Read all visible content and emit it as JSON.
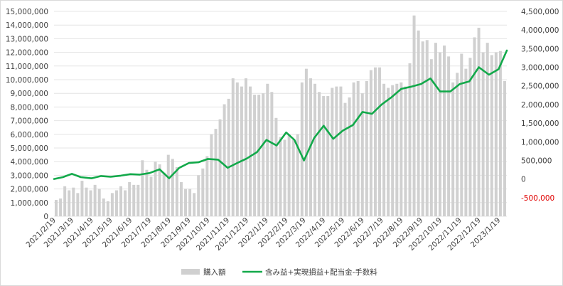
{
  "chart_data": {
    "type": "bar+line",
    "title": "",
    "colors": {
      "bar": "#d0d0d0",
      "line": "#12a94a",
      "negative_tick": "#e00000",
      "grid": "#e4e4e4"
    },
    "grid": true,
    "legend_position": "bottom",
    "left_axis": {
      "ylim": [
        0,
        15000000
      ],
      "ticks": [
        0,
        1000000,
        2000000,
        3000000,
        4000000,
        5000000,
        6000000,
        7000000,
        8000000,
        9000000,
        10000000,
        11000000,
        12000000,
        13000000,
        14000000,
        15000000
      ],
      "tick_labels": [
        "0",
        "1,000,000",
        "2,000,000",
        "3,000,000",
        "4,000,000",
        "5,000,000",
        "6,000,000",
        "7,000,000",
        "8,000,000",
        "9,000,000",
        "10,000,000",
        "11,000,000",
        "12,000,000",
        "13,000,000",
        "14,000,000",
        "15,000,000"
      ]
    },
    "right_axis": {
      "ylim": [
        -1000000,
        4500000
      ],
      "ticks": [
        -500000,
        0,
        500000,
        1000000,
        1500000,
        2000000,
        2500000,
        3000000,
        3500000,
        4000000,
        4500000
      ],
      "tick_labels": [
        "-500,000",
        "0",
        "500,000",
        "1,000,000",
        "1,500,000",
        "2,000,000",
        "2,500,000",
        "3,000,000",
        "3,500,000",
        "4,000,000",
        "4,500,000"
      ]
    },
    "x_tick_labels": [
      "2021/2/19",
      "2021/3/19",
      "2021/4/19",
      "2021/5/19",
      "2021/6/19",
      "2021/7/19",
      "2021/8/19",
      "2021/9/19",
      "2021/10/19",
      "2021/11/19",
      "2021/12/19",
      "2022/1/19",
      "2022/2/19",
      "2022/3/19",
      "2022/4/19",
      "2022/5/19",
      "2022/6/19",
      "2022/7/19",
      "2022/8/19",
      "2022/9/19",
      "2022/10/19",
      "2022/11/19",
      "2022/12/19",
      "2023/1/19"
    ],
    "series": [
      {
        "name": "購入額",
        "type": "bar",
        "axis": "left",
        "values": [
          1200000,
          1300000,
          2200000,
          1900000,
          2100000,
          1700000,
          2600000,
          2100000,
          1900000,
          2300000,
          2000000,
          1300000,
          1100000,
          1700000,
          1900000,
          2200000,
          1900000,
          2500000,
          2300000,
          2300000,
          4100000,
          3400000,
          2900000,
          4000000,
          3800000,
          3200000,
          4500000,
          4200000,
          3600000,
          2500000,
          2000000,
          2000000,
          1700000,
          3000000,
          3500000,
          4400000,
          6000000,
          6400000,
          7100000,
          8200000,
          8600000,
          10100000,
          9800000,
          9500000,
          10100000,
          9500000,
          8900000,
          8900000,
          9000000,
          9700000,
          9100000,
          7200000,
          5800000,
          5600000,
          6000000,
          5600000,
          6000000,
          9800000,
          10800000,
          10100000,
          9700000,
          9100000,
          8800000,
          8800000,
          9400000,
          9500000,
          9500000,
          8300000,
          8700000,
          9800000,
          9900000,
          9000000,
          9900000,
          10700000,
          10900000,
          10900000,
          9700000,
          9400000,
          9600000,
          9700000,
          9800000,
          9500000,
          11200000,
          14700000,
          13600000,
          12800000,
          12900000,
          11500000,
          12700000,
          12000000,
          12500000,
          11700000,
          9800000,
          10500000,
          11900000,
          10800000,
          11600000,
          13100000,
          13800000,
          12000000,
          12700000,
          11800000,
          12000000,
          12100000,
          9900000
        ],
        "color": "#d0d0d0"
      },
      {
        "name": "含み益+実現損益+配当金-手数料",
        "type": "line",
        "axis": "right",
        "points_date": [
          "2021/2/19",
          "2021/3/5",
          "2021/3/19",
          "2021/4/2",
          "2021/4/19",
          "2021/5/4",
          "2021/5/19",
          "2021/6/4",
          "2021/6/19",
          "2021/7/4",
          "2021/7/19",
          "2021/8/4",
          "2021/8/19",
          "2021/9/4",
          "2021/9/19",
          "2021/10/4",
          "2021/10/19",
          "2021/11/4",
          "2021/11/19",
          "2021/12/4",
          "2021/12/19",
          "2022/1/4",
          "2022/1/19",
          "2022/2/4",
          "2022/2/19",
          "2022/3/4",
          "2022/3/19",
          "2022/4/4",
          "2022/4/19",
          "2022/5/4",
          "2022/5/19",
          "2022/6/4",
          "2022/6/19",
          "2022/7/4",
          "2022/7/19",
          "2022/8/4",
          "2022/8/19",
          "2022/9/4",
          "2022/9/19",
          "2022/10/4",
          "2022/10/19",
          "2022/11/4",
          "2022/11/19",
          "2022/12/4",
          "2022/12/19",
          "2023/1/4",
          "2023/1/19",
          "2023/2/1"
        ],
        "values": [
          0,
          50000,
          140000,
          50000,
          20000,
          80000,
          60000,
          90000,
          130000,
          120000,
          160000,
          260000,
          20000,
          300000,
          430000,
          450000,
          540000,
          520000,
          300000,
          430000,
          550000,
          720000,
          1050000,
          900000,
          1250000,
          1050000,
          500000,
          1100000,
          1430000,
          1080000,
          1300000,
          1450000,
          1800000,
          1750000,
          2000000,
          2200000,
          2420000,
          2480000,
          2550000,
          2700000,
          2350000,
          2350000,
          2550000,
          2620000,
          3000000,
          2800000,
          2950000,
          3450000
        ],
        "color": "#12a94a"
      }
    ],
    "legend": [
      "購入額",
      "含み益+実現損益+配当金-手数料"
    ]
  }
}
